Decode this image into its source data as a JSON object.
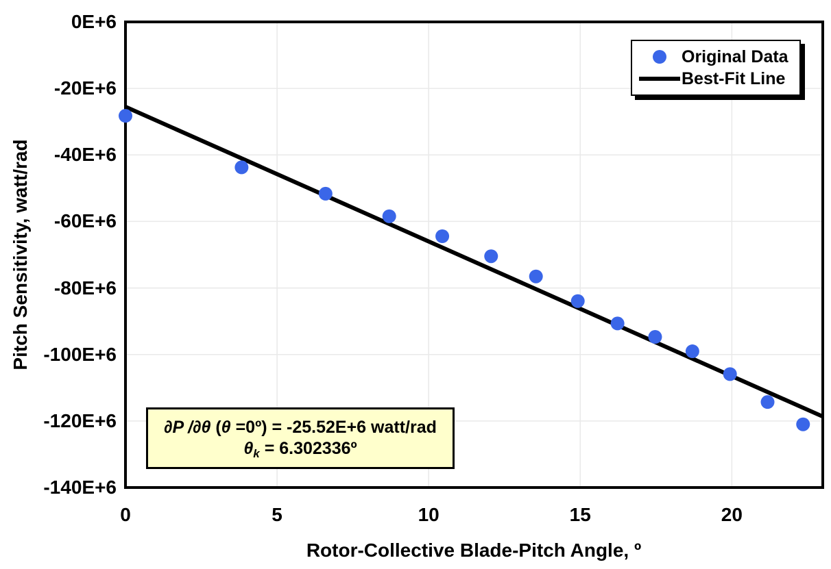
{
  "chart_data": {
    "type": "scatter",
    "title": "",
    "xlabel": "Rotor-Collective Blade-Pitch Angle, º",
    "ylabel": "Pitch Sensitivity, watt/rad",
    "xlim_deg": [
      0,
      23
    ],
    "ylim_e6": [
      -140,
      0
    ],
    "x_ticks": [
      0,
      5,
      10,
      15,
      20
    ],
    "x_tick_labels": [
      "0",
      "5",
      "10",
      "15",
      "20"
    ],
    "y_ticks_e6": [
      0,
      -20,
      -40,
      -60,
      -80,
      -100,
      -120,
      -140
    ],
    "y_tick_labels": [
      "0E+6",
      "-20E+6",
      "-40E+6",
      "-60E+6",
      "-80E+6",
      "-100E+6",
      "-120E+6",
      "-140E+6"
    ],
    "grid": true,
    "legend_position": "top-right",
    "series": [
      {
        "name": "Original Data",
        "type": "scatter",
        "color": "#3A66E8",
        "x_deg": [
          0.0,
          3.83,
          6.6,
          8.7,
          10.45,
          12.06,
          13.54,
          14.92,
          16.23,
          17.47,
          18.7,
          19.94,
          21.18,
          22.35
        ],
        "y_e6": [
          -28.24,
          -43.73,
          -51.66,
          -58.44,
          -64.44,
          -70.46,
          -76.53,
          -83.94,
          -90.67,
          -94.71,
          -99.04,
          -105.9,
          -114.3,
          -121.0
        ]
      },
      {
        "name": "Best-Fit Line",
        "type": "line",
        "color": "#000000",
        "fit": {
          "intercept_e6": -25.52,
          "theta_k_deg": 6.302336,
          "x_range_deg": [
            0,
            23
          ]
        }
      }
    ],
    "annotation": {
      "bg_color": "#FFFFCC",
      "lines": [
        [
          {
            "t": "∂P /∂θ",
            "i": 1
          },
          {
            "t": " ("
          },
          {
            "t": "θ",
            "i": 1
          },
          {
            "t": " =0º) = -25.52E+6 watt/rad"
          }
        ],
        [
          {
            "t": "θ",
            "i": 1
          },
          {
            "t": " k",
            "i": 1,
            "sub": 1
          },
          {
            "t": " = 6.302336º"
          }
        ]
      ]
    },
    "colors": {
      "marker": "#3A66E8",
      "fit_line": "#000000",
      "grid": "#E9E9E9",
      "plot_border": "#000000",
      "annotation_bg": "#FFFFCC",
      "legend_bg": "#FFFFFF",
      "legend_shadow": "#000000"
    }
  }
}
